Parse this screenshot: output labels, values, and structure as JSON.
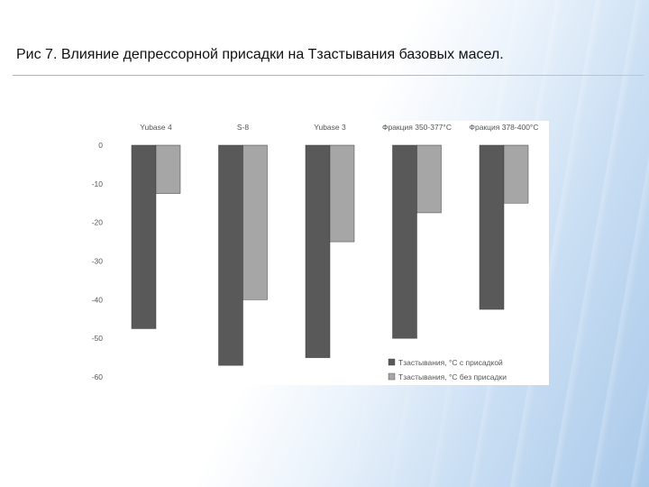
{
  "slide": {
    "title": "Рис 7. Влияние депрессорной присадки на Тзастывания базовых масел."
  },
  "chart_data": {
    "type": "bar",
    "categories": [
      "Yubase 4",
      "S-8",
      "Yubase 3",
      "Фракция 350-377°С",
      "Фракция 378-400°С"
    ],
    "series": [
      {
        "name": "Тзастывания, °С с присадкой",
        "values": [
          -47.5,
          -57,
          -55,
          -50,
          -42.5
        ],
        "color": "#595959"
      },
      {
        "name": "Тзастывания, °С без присадки",
        "values": [
          -12.5,
          -40,
          -25,
          -17.5,
          -15
        ],
        "color": "#a6a6a6"
      }
    ],
    "ylim": [
      -60,
      0
    ],
    "yticks": [
      0,
      -10,
      -20,
      -30,
      -40,
      -50,
      -60
    ],
    "category_labels_position": "top",
    "legend_position": "bottom-right",
    "grid": false
  }
}
